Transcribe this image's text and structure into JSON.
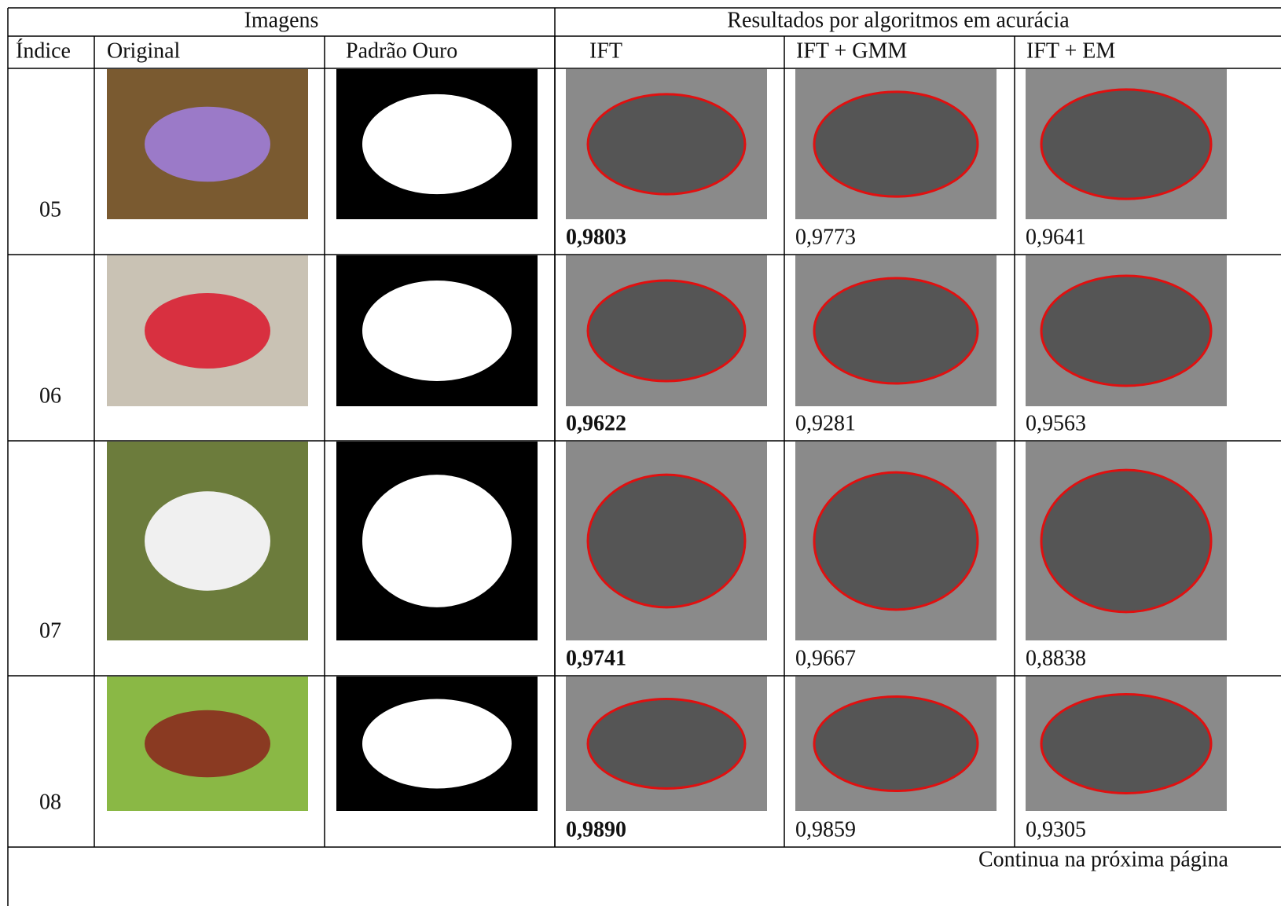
{
  "table": {
    "group_headers": [
      "Imagens",
      "Resultados por algoritmos em acurácia"
    ],
    "columns": [
      "Índice",
      "Original",
      "Padrão Ouro",
      "IFT",
      "IFT + GMM",
      "IFT + EM"
    ],
    "rows": [
      {
        "index": "05",
        "scores": [
          "0,9803",
          "0,9773",
          "0,9641"
        ]
      },
      {
        "index": "06",
        "scores": [
          "0,9622",
          "0,9281",
          "0,9563"
        ]
      },
      {
        "index": "07",
        "scores": [
          "0,9741",
          "0,9667",
          "0,8838"
        ]
      },
      {
        "index": "08",
        "scores": [
          "0,9890",
          "0,9859",
          "0,9305"
        ]
      }
    ],
    "footer": "Continua na próxima página"
  }
}
